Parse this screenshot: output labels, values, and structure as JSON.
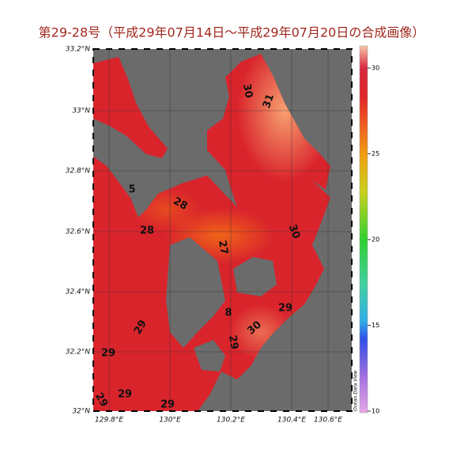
{
  "title": "第29-28号（平成29年07月14日～平成29年07月20日の合成画像）",
  "map": {
    "lat_labels": [
      "33.2°N",
      "33°N",
      "32.8°N",
      "32.6°N",
      "32.4°N",
      "32.2°N",
      "32°N"
    ],
    "lon_labels": [
      "129.8°E",
      "130°E",
      "130.2°E",
      "130.4°E",
      "130.6°E"
    ],
    "contour_labels": [
      "30",
      "31",
      "28",
      "28",
      "27",
      "30",
      "29",
      "29",
      "30",
      "29",
      "29",
      "29",
      "29",
      "29",
      "5",
      "8"
    ],
    "credit": "Ocean Data View"
  },
  "colorbar": {
    "ticks": [
      30,
      25,
      20,
      15,
      10
    ]
  }
}
